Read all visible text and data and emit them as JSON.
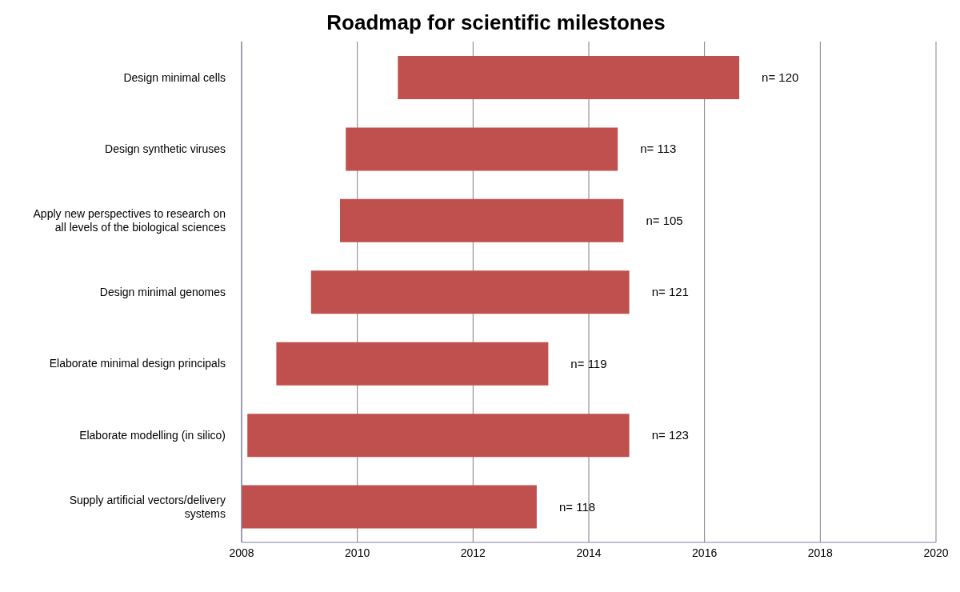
{
  "chart_data": {
    "type": "bar",
    "orientation": "horizontal",
    "title": "Roadmap for scientific milestones",
    "categories": [
      "Design minimal cells",
      "Design synthetic viruses",
      "Apply new perspectives to research on all levels of the biological sciences",
      "Design minimal genomes",
      "Elaborate minimal design principals",
      "Elaborate modelling (in silico)",
      "Supply artificial vectors/delivery systems"
    ],
    "base": [
      2010.7,
      2009.8,
      2009.7,
      2009.2,
      2008.6,
      2008.1,
      2008
    ],
    "values": [
      5.9,
      4.7,
      4.9,
      5.5,
      4.7,
      6.6,
      5.1
    ],
    "annotations": [
      "n= 120",
      "n= 113",
      "n= 105",
      "n= 121",
      "n= 119",
      "n= 123",
      "n= 118"
    ],
    "color": "#c0504d",
    "xlim": [
      2008,
      2020
    ],
    "xticks": [
      2008,
      2010,
      2012,
      2014,
      2016,
      2018,
      2020
    ],
    "grid": "x"
  }
}
